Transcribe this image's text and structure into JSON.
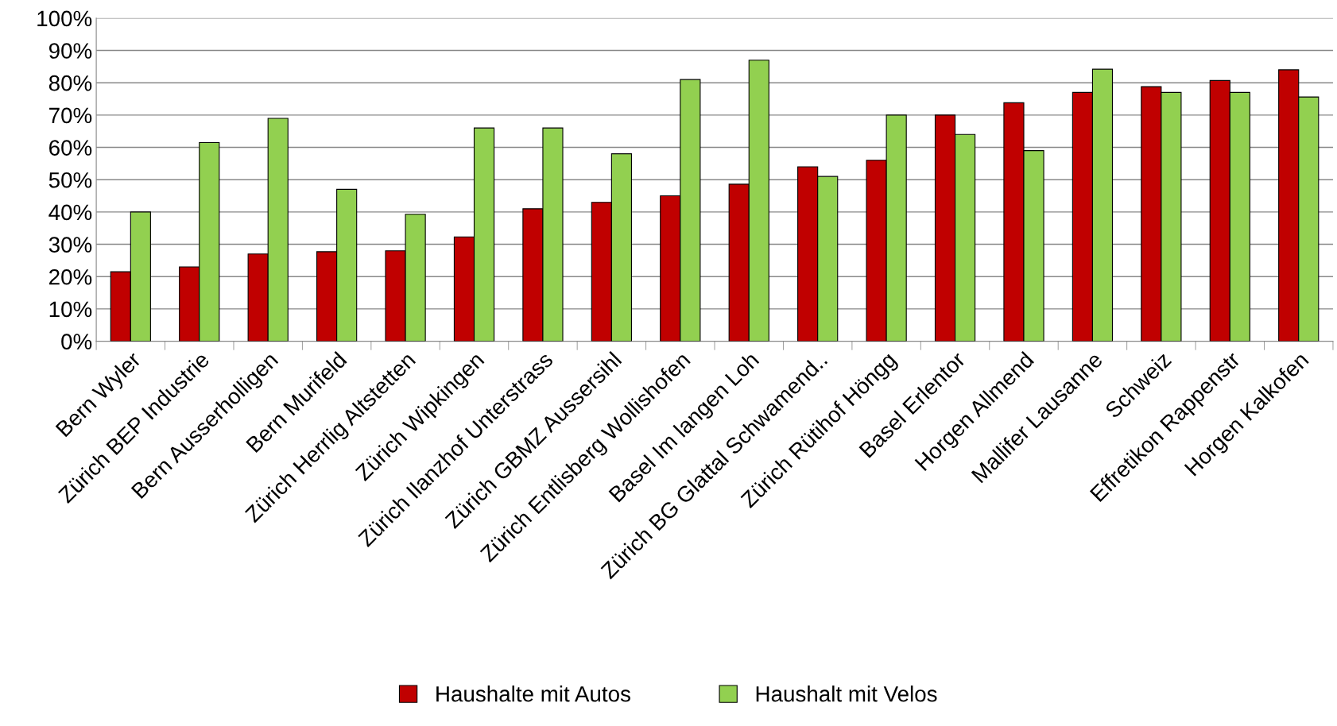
{
  "chart_data": {
    "type": "bar",
    "categories": [
      "Bern Wyler",
      "Zürich BEP Industrie",
      "Bern Ausserholligen",
      "Bern Murifeld",
      "Zürich Herrlig Altstetten",
      "Zürich Wipkingen",
      "Zürich Ilanzhof Unterstrass",
      "Zürich GBMZ Aussersihl",
      "Zürich Entlisberg Wollishofen",
      "Basel Im langen Loh",
      "Zürich BG Glattal Schwamend..",
      "Zürich Rütihof Höngg",
      "Basel Erlentor",
      "Horgen Allmend",
      "Mallifer Lausanne",
      "Schweiz",
      "Effretikon Rappenstr",
      "Horgen Kalkofen"
    ],
    "series": [
      {
        "name": "Haushalte mit Autos",
        "color": "#c00000",
        "values": [
          21.5,
          23,
          27,
          27.7,
          28,
          32.3,
          41,
          43,
          45,
          48.6,
          54,
          56,
          70,
          73.8,
          77,
          78.8,
          80.7,
          84
        ]
      },
      {
        "name": "Haushalt mit Velos",
        "color": "#92d050",
        "values": [
          40,
          61.5,
          69,
          47,
          39.3,
          66,
          66,
          58,
          81,
          87,
          51,
          70,
          64,
          59,
          84.2,
          77,
          77,
          75.6
        ]
      }
    ],
    "ylim": [
      0,
      100
    ],
    "yticks": [
      {
        "value": 0,
        "label": "0%"
      },
      {
        "value": 10,
        "label": "10%"
      },
      {
        "value": 20,
        "label": "20%"
      },
      {
        "value": 30,
        "label": "30%"
      },
      {
        "value": 40,
        "label": "40%"
      },
      {
        "value": 50,
        "label": "50%"
      },
      {
        "value": 60,
        "label": "60%"
      },
      {
        "value": 70,
        "label": "70%"
      },
      {
        "value": 80,
        "label": "80%"
      },
      {
        "value": 90,
        "label": "90%"
      },
      {
        "value": 100,
        "label": "100%"
      }
    ],
    "grid": "y",
    "legend": "bottom"
  }
}
